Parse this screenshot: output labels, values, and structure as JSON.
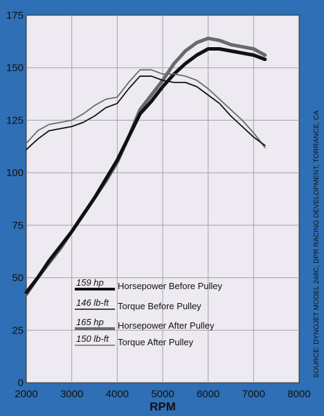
{
  "chart_data": {
    "type": "line",
    "xlabel": "RPM",
    "ylabel": "",
    "xlim": [
      2000,
      8000
    ],
    "ylim": [
      0,
      175
    ],
    "x_ticks": [
      "2000",
      "3000",
      "4000",
      "5000",
      "6000",
      "7000",
      "8000"
    ],
    "y_ticks": [
      "0",
      "25",
      "50",
      "75",
      "100",
      "125",
      "150",
      "175"
    ],
    "grid": true,
    "legend_position": "bottom-left",
    "source_note": "SOURCE: DYNOJET MODEL 248C, DPR RACING DEVELOPMENT, TORRANCE, CA",
    "colors": {
      "background": "#2e6fb5",
      "plot": "#eeeaf1",
      "grid": "#a39fae",
      "before": "#111111",
      "after": "#6a6a6a"
    },
    "series": [
      {
        "name": "Horsepower Before Pulley",
        "legend_value": "159 hp",
        "style": "thick-dark",
        "x": [
          2000,
          2250,
          2500,
          2750,
          3000,
          3250,
          3500,
          3750,
          4000,
          4250,
          4500,
          4750,
          5000,
          5250,
          5500,
          5750,
          6000,
          6250,
          6500,
          6750,
          7000,
          7250
        ],
        "y": [
          43,
          50,
          58,
          65,
          72,
          80,
          88,
          97,
          106,
          117,
          128,
          134,
          141,
          147,
          152,
          156,
          159,
          159,
          158,
          157,
          156,
          154
        ]
      },
      {
        "name": "Torque Before Pulley",
        "legend_value": "146 lb-ft",
        "style": "thin-dark",
        "x": [
          2000,
          2250,
          2500,
          2750,
          3000,
          3250,
          3500,
          3750,
          4000,
          4250,
          4500,
          4750,
          5000,
          5250,
          5500,
          5750,
          6000,
          6250,
          6500,
          6750,
          7000,
          7250
        ],
        "y": [
          111,
          116,
          120,
          121,
          122,
          124,
          127,
          131,
          133,
          140,
          146,
          146,
          144,
          143,
          143,
          141,
          137,
          133,
          127,
          122,
          117,
          113
        ]
      },
      {
        "name": "Horsepower After Pulley",
        "legend_value": "165 hp",
        "style": "thick-gray",
        "x": [
          2000,
          2250,
          2500,
          2750,
          3000,
          3250,
          3500,
          3750,
          4000,
          4250,
          4500,
          4750,
          5000,
          5250,
          5500,
          5750,
          6000,
          6250,
          6500,
          6750,
          7000,
          7250
        ],
        "y": [
          42,
          50,
          57,
          64,
          72,
          80,
          88,
          96,
          105,
          117,
          130,
          137,
          144,
          152,
          158,
          162,
          164,
          163,
          161,
          160,
          159,
          156
        ]
      },
      {
        "name": "Torque After Pulley",
        "legend_value": "150 lb-ft",
        "style": "thin-gray",
        "x": [
          2000,
          2250,
          2500,
          2750,
          3000,
          3250,
          3500,
          3750,
          4000,
          4250,
          4500,
          4750,
          5000,
          5250,
          5500,
          5750,
          6000,
          6250,
          6500,
          6750,
          7000,
          7250
        ],
        "y": [
          114,
          120,
          123,
          124,
          125,
          128,
          132,
          135,
          136,
          143,
          149,
          149,
          147,
          147,
          146,
          144,
          140,
          135,
          130,
          125,
          119,
          112
        ]
      }
    ]
  }
}
